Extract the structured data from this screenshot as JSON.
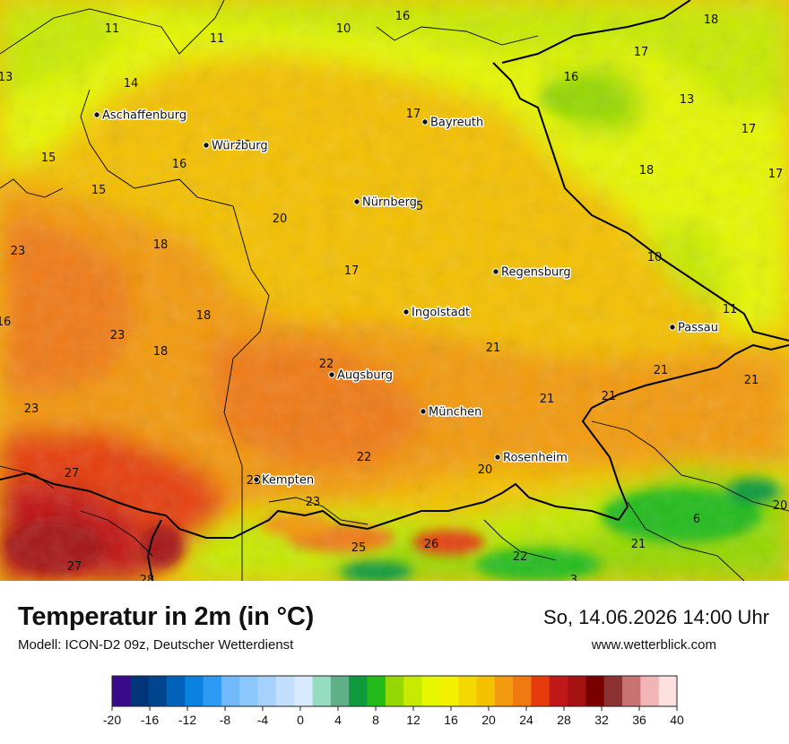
{
  "title": "Temperatur in 2m (in °C)",
  "subtitle": "Modell: ICON-D2 09z, Deutscher Wetterdienst",
  "datetime": "So, 14.06.2026 14:00 Uhr",
  "website": "www.wetterblick.com",
  "cities": [
    {
      "name": "Aschaffenburg"
    },
    {
      "name": "Würzburg"
    },
    {
      "name": "Bayreuth"
    },
    {
      "name": "Nürnberg"
    },
    {
      "name": "Regensburg"
    },
    {
      "name": "Ingolstadt"
    },
    {
      "name": "Passau"
    },
    {
      "name": "Augsburg"
    },
    {
      "name": "München"
    },
    {
      "name": "Rosenheim"
    },
    {
      "name": "Kempten"
    }
  ],
  "temperature_labels": [
    "11",
    "11",
    "10",
    "16",
    "18",
    "13",
    "14",
    "17",
    "16",
    "17",
    "13",
    "17",
    "20",
    "15",
    "16",
    "18",
    "17",
    "15",
    "20",
    "15",
    "23",
    "18",
    "17",
    "10",
    "11",
    "16",
    "18",
    "23",
    "18",
    "21",
    "22",
    "21",
    "21",
    "21",
    "23",
    "21",
    "22",
    "27",
    "20",
    "23",
    "23",
    "20",
    "6",
    "26",
    "25",
    "22",
    "21",
    "27",
    "28",
    "3"
  ],
  "legend": {
    "ticks": [
      "-20",
      "-16",
      "-12",
      "-8",
      "-4",
      "0",
      "4",
      "8",
      "12",
      "16",
      "20",
      "24",
      "28",
      "32",
      "36",
      "40"
    ],
    "colors": [
      "#3a0a8c",
      "#00357a",
      "#00468f",
      "#0062b8",
      "#0a83e0",
      "#2d9bf5",
      "#70b9fa",
      "#8cc7fb",
      "#a6d1fc",
      "#c2e0fd",
      "#d8ebfe",
      "#96dcc0",
      "#5fb087",
      "#109a3e",
      "#22bb1a",
      "#95d806",
      "#c6eb00",
      "#e6f700",
      "#f4f100",
      "#f4d800",
      "#f4c000",
      "#f29a10",
      "#f07a12",
      "#e63c0c",
      "#c01818",
      "#a51212",
      "#7a0000",
      "#8c3232",
      "#c87272",
      "#f2b4b4",
      "#fce0e0"
    ]
  }
}
